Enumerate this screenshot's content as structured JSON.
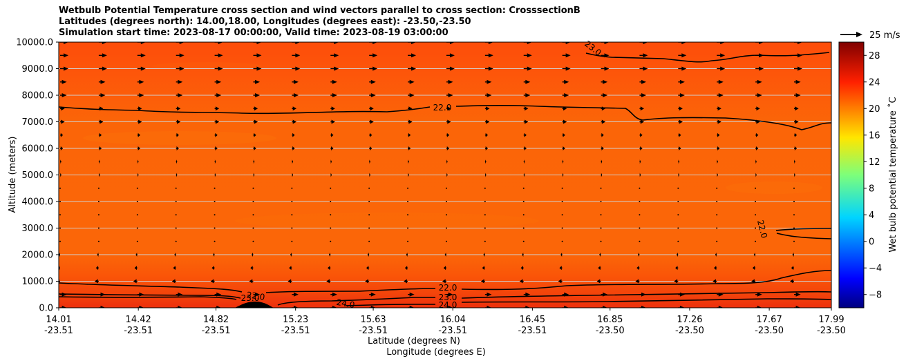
{
  "chart_data": {
    "type": "heatmap",
    "title_lines": [
      "Wetbulb Potential Temperature cross section and wind vectors parallel to cross section: CrosssectionB",
      "Latitudes (degrees north): 14.00,18.00, Longitudes (degrees east): -23.50,-23.50",
      "Simulation start time: 2023-08-17 00:00:00, Valid time: 2023-08-19 03:00:00"
    ],
    "ylabel": "Altitude (meters)",
    "xlabel_lat": "Latitude (degrees N)",
    "xlabel_lon": "Longitude (degrees E)",
    "ylim": [
      0,
      10000
    ],
    "yticks": [
      "0.0",
      "1000.0",
      "2000.0",
      "3000.0",
      "4000.0",
      "5000.0",
      "6000.0",
      "7000.0",
      "8000.0",
      "9000.0",
      "10000.0"
    ],
    "xticks": [
      {
        "lat": "14.01",
        "lon": "-23.51"
      },
      {
        "lat": "14.42",
        "lon": "-23.51"
      },
      {
        "lat": "14.82",
        "lon": "-23.51"
      },
      {
        "lat": "15.23",
        "lon": "-23.51"
      },
      {
        "lat": "15.63",
        "lon": "-23.51"
      },
      {
        "lat": "16.04",
        "lon": "-23.51"
      },
      {
        "lat": "16.45",
        "lon": "-23.51"
      },
      {
        "lat": "16.85",
        "lon": "-23.50"
      },
      {
        "lat": "17.26",
        "lon": "-23.50"
      },
      {
        "lat": "17.67",
        "lon": "-23.50"
      },
      {
        "lat": "17.99",
        "lon": "-23.50"
      }
    ],
    "colorbar": {
      "label": "Wet bulb potential temperature ˚C",
      "range": [
        -10,
        30
      ],
      "ticks": [
        "28",
        "24",
        "20",
        "16",
        "12",
        "8",
        "4",
        "0",
        "−4",
        "−8"
      ]
    },
    "quiver_key": {
      "label": "25 m/s"
    },
    "contours": [
      {
        "label": "23.0",
        "alt": 9500
      },
      {
        "label": "22.0",
        "alt": 7400
      },
      {
        "label": "22.0",
        "alt": 2900
      },
      {
        "label": "22.0",
        "alt": 800
      },
      {
        "label": "23.0",
        "alt": 420
      },
      {
        "label": "24.0",
        "alt": 120
      },
      {
        "label": "22.0",
        "alt": 400
      },
      {
        "label": "23.0",
        "alt": 300
      },
      {
        "label": "24.0",
        "alt": 100
      }
    ],
    "colors": {
      "field_main": "#fb6408",
      "field_upper": "#fd4f0a",
      "field_lower": "#f0390c"
    }
  }
}
